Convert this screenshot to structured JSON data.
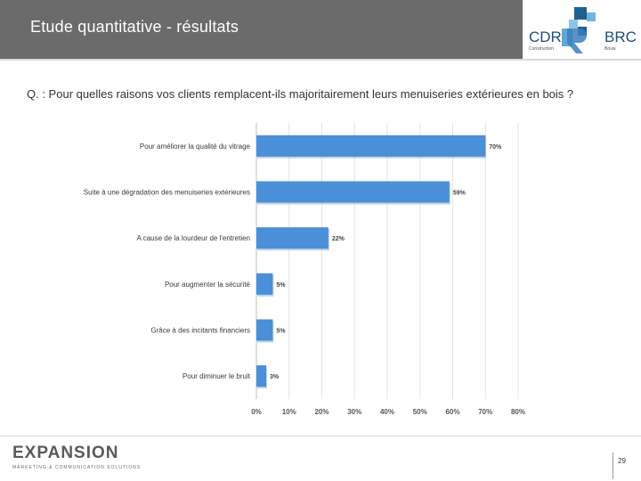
{
  "header": {
    "title": "Etude quantitative - résultats",
    "logo": {
      "name_left": "CDR",
      "sub_left": "Construction",
      "name_right": "BRC",
      "sub_right": "Bouw"
    }
  },
  "question": "Q. : Pour quelles raisons vos clients remplacent-ils majoritairement leurs menuiseries extérieures en bois ?",
  "chart_data": {
    "type": "bar",
    "orientation": "horizontal",
    "title": "",
    "xlabel": "",
    "ylabel": "",
    "categories": [
      "Pour améliorer la qualité du vitrage",
      "Suite à une dégradation des menuiseries extérieures",
      "A cause de la lourdeur de l'entretien",
      "Pour augmenter la sécurité",
      "Grâce à des incitants financiers",
      "Pour diminuer le bruit"
    ],
    "values": [
      70,
      59,
      22,
      5,
      5,
      3
    ],
    "value_labels": [
      "70%",
      "59%",
      "22%",
      "5%",
      "5%",
      "3%"
    ],
    "xlim": [
      0,
      80
    ],
    "ticks": [
      0,
      10,
      20,
      30,
      40,
      50,
      60,
      70,
      80
    ],
    "tick_labels": [
      "0%",
      "10%",
      "20%",
      "30%",
      "40%",
      "50%",
      "60%",
      "70%",
      "80%"
    ],
    "grid": true,
    "bar_color": "#4a8fd8"
  },
  "footer": {
    "brand": "EXPANSION",
    "tagline": "MARKETING & COMMUNICATION SOLUTIONS",
    "page_number": "29"
  }
}
